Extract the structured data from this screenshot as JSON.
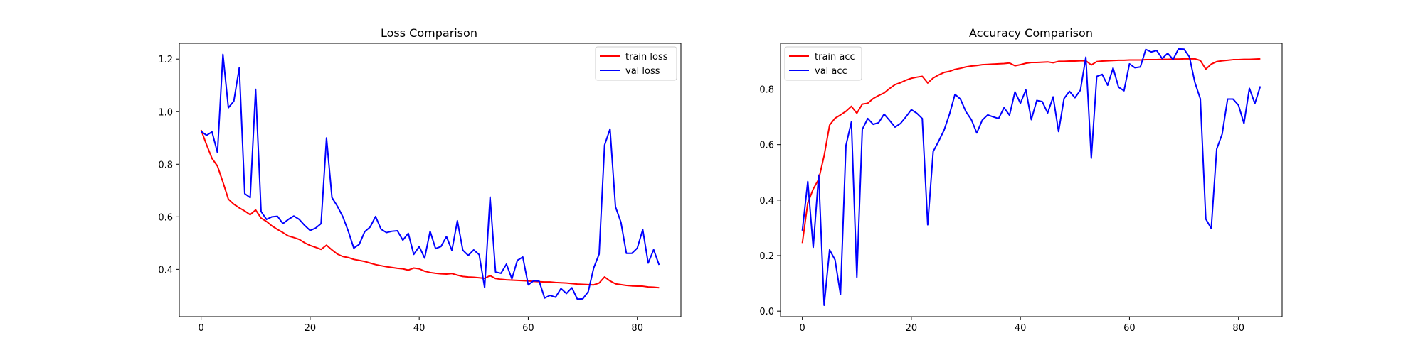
{
  "chart_data": [
    {
      "type": "line",
      "title": "Loss Comparison",
      "xlabel": "",
      "ylabel": "",
      "xlim": [
        -4,
        88
      ],
      "ylim": [
        0.22,
        1.26
      ],
      "xticks": [
        0,
        20,
        40,
        60,
        80
      ],
      "yticks": [
        0.4,
        0.6,
        0.8,
        1.0,
        1.2
      ],
      "ytick_labels": [
        "0.4",
        "0.6",
        "0.8",
        "1.0",
        "1.2"
      ],
      "legend_position": "top-right",
      "grid": false,
      "x_start": 0,
      "series": [
        {
          "name": "train loss",
          "color": "#ff0000",
          "values": [
            0.93,
            0.874,
            0.822,
            0.793,
            0.732,
            0.667,
            0.648,
            0.634,
            0.622,
            0.608,
            0.626,
            0.595,
            0.582,
            0.565,
            0.552,
            0.54,
            0.527,
            0.521,
            0.514,
            0.501,
            0.491,
            0.484,
            0.476,
            0.492,
            0.474,
            0.458,
            0.449,
            0.445,
            0.438,
            0.434,
            0.43,
            0.424,
            0.418,
            0.414,
            0.41,
            0.407,
            0.404,
            0.402,
            0.397,
            0.405,
            0.402,
            0.393,
            0.388,
            0.385,
            0.383,
            0.382,
            0.384,
            0.378,
            0.373,
            0.371,
            0.37,
            0.368,
            0.366,
            0.376,
            0.365,
            0.362,
            0.36,
            0.359,
            0.358,
            0.357,
            0.356,
            0.354,
            0.353,
            0.352,
            0.352,
            0.35,
            0.349,
            0.348,
            0.346,
            0.344,
            0.343,
            0.342,
            0.341,
            0.348,
            0.371,
            0.356,
            0.345,
            0.342,
            0.339,
            0.337,
            0.336,
            0.336,
            0.333,
            0.332,
            0.33
          ]
        },
        {
          "name": "val loss",
          "color": "#0000ff",
          "values": [
            0.925,
            0.91,
            0.923,
            0.844,
            1.218,
            1.015,
            1.04,
            1.167,
            0.688,
            0.673,
            1.085,
            0.62,
            0.59,
            0.6,
            0.602,
            0.574,
            0.59,
            0.603,
            0.59,
            0.567,
            0.548,
            0.557,
            0.574,
            0.9,
            0.673,
            0.64,
            0.6,
            0.545,
            0.481,
            0.495,
            0.543,
            0.561,
            0.601,
            0.553,
            0.54,
            0.545,
            0.547,
            0.511,
            0.537,
            0.457,
            0.487,
            0.443,
            0.545,
            0.479,
            0.487,
            0.525,
            0.472,
            0.585,
            0.473,
            0.453,
            0.474,
            0.456,
            0.331,
            0.675,
            0.39,
            0.385,
            0.42,
            0.364,
            0.434,
            0.447,
            0.341,
            0.357,
            0.355,
            0.291,
            0.301,
            0.294,
            0.327,
            0.308,
            0.33,
            0.287,
            0.288,
            0.315,
            0.405,
            0.458,
            0.873,
            0.934,
            0.638,
            0.579,
            0.461,
            0.461,
            0.481,
            0.551,
            0.424,
            0.475,
            0.417
          ]
        }
      ]
    },
    {
      "type": "line",
      "title": "Accuracy Comparison",
      "xlabel": "",
      "ylabel": "",
      "xlim": [
        -4,
        88
      ],
      "ylim": [
        -0.02,
        0.965
      ],
      "xticks": [
        0,
        20,
        40,
        60,
        80
      ],
      "yticks": [
        0.0,
        0.2,
        0.4,
        0.6,
        0.8
      ],
      "ytick_labels": [
        "0.0",
        "0.2",
        "0.4",
        "0.6",
        "0.8"
      ],
      "legend_position": "top-left",
      "grid": false,
      "x_start": 0,
      "series": [
        {
          "name": "train acc",
          "color": "#ff0000",
          "values": [
            0.245,
            0.39,
            0.44,
            0.475,
            0.56,
            0.67,
            0.695,
            0.707,
            0.72,
            0.738,
            0.713,
            0.746,
            0.749,
            0.766,
            0.777,
            0.786,
            0.802,
            0.816,
            0.823,
            0.832,
            0.839,
            0.843,
            0.846,
            0.822,
            0.84,
            0.851,
            0.86,
            0.864,
            0.871,
            0.875,
            0.88,
            0.883,
            0.885,
            0.888,
            0.889,
            0.89,
            0.891,
            0.892,
            0.894,
            0.884,
            0.888,
            0.893,
            0.896,
            0.896,
            0.897,
            0.898,
            0.895,
            0.9,
            0.9,
            0.901,
            0.901,
            0.902,
            0.902,
            0.887,
            0.899,
            0.901,
            0.902,
            0.903,
            0.904,
            0.904,
            0.905,
            0.905,
            0.905,
            0.906,
            0.906,
            0.906,
            0.907,
            0.907,
            0.908,
            0.908,
            0.909,
            0.909,
            0.909,
            0.903,
            0.872,
            0.89,
            0.899,
            0.902,
            0.904,
            0.906,
            0.906,
            0.907,
            0.907,
            0.908,
            0.909
          ]
        },
        {
          "name": "val acc",
          "color": "#0000ff",
          "values": [
            0.29,
            0.467,
            0.23,
            0.49,
            0.021,
            0.221,
            0.185,
            0.06,
            0.597,
            0.682,
            0.122,
            0.655,
            0.694,
            0.673,
            0.679,
            0.71,
            0.687,
            0.663,
            0.676,
            0.7,
            0.726,
            0.713,
            0.694,
            0.311,
            0.575,
            0.612,
            0.652,
            0.71,
            0.781,
            0.764,
            0.719,
            0.69,
            0.642,
            0.688,
            0.707,
            0.7,
            0.694,
            0.733,
            0.706,
            0.79,
            0.749,
            0.797,
            0.69,
            0.759,
            0.755,
            0.714,
            0.772,
            0.647,
            0.766,
            0.792,
            0.769,
            0.796,
            0.915,
            0.551,
            0.846,
            0.853,
            0.814,
            0.876,
            0.807,
            0.794,
            0.891,
            0.877,
            0.88,
            0.943,
            0.934,
            0.939,
            0.91,
            0.929,
            0.907,
            0.945,
            0.944,
            0.916,
            0.824,
            0.765,
            0.332,
            0.298,
            0.584,
            0.638,
            0.764,
            0.764,
            0.742,
            0.676,
            0.803,
            0.748,
            0.81
          ]
        }
      ]
    }
  ]
}
